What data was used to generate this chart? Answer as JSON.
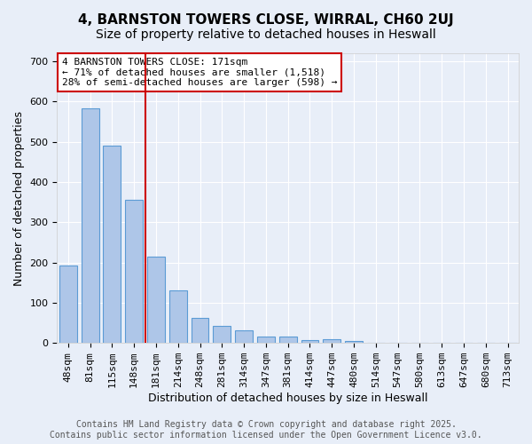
{
  "title_line1": "4, BARNSTON TOWERS CLOSE, WIRRAL, CH60 2UJ",
  "title_line2": "Size of property relative to detached houses in Heswall",
  "xlabel": "Distribution of detached houses by size in Heswall",
  "ylabel": "Number of detached properties",
  "bin_labels": [
    "48sqm",
    "81sqm",
    "115sqm",
    "148sqm",
    "181sqm",
    "214sqm",
    "248sqm",
    "281sqm",
    "314sqm",
    "347sqm",
    "381sqm",
    "414sqm",
    "447sqm",
    "480sqm",
    "514sqm",
    "547sqm",
    "580sqm",
    "613sqm",
    "647sqm",
    "680sqm",
    "713sqm"
  ],
  "bar_values": [
    193,
    583,
    490,
    355,
    215,
    130,
    62,
    42,
    32,
    15,
    15,
    8,
    10,
    5,
    0,
    0,
    0,
    0,
    0,
    0,
    0
  ],
  "bar_color": "#aec6e8",
  "bar_edge_color": "#5b9bd5",
  "red_line_x": 4.0,
  "red_line_color": "#cc0000",
  "annotation_box_text": "4 BARNSTON TOWERS CLOSE: 171sqm\n← 71% of detached houses are smaller (1,518)\n28% of semi-detached houses are larger (598) →",
  "ylim": [
    0,
    720
  ],
  "yticks": [
    0,
    100,
    200,
    300,
    400,
    500,
    600,
    700
  ],
  "background_color": "#e8eef8",
  "footer_text": "Contains HM Land Registry data © Crown copyright and database right 2025.\nContains public sector information licensed under the Open Government Licence v3.0.",
  "grid_color": "#ffffff",
  "title_fontsize": 11,
  "subtitle_fontsize": 10,
  "axis_label_fontsize": 9,
  "tick_fontsize": 8,
  "annotation_fontsize": 8,
  "footer_fontsize": 7
}
